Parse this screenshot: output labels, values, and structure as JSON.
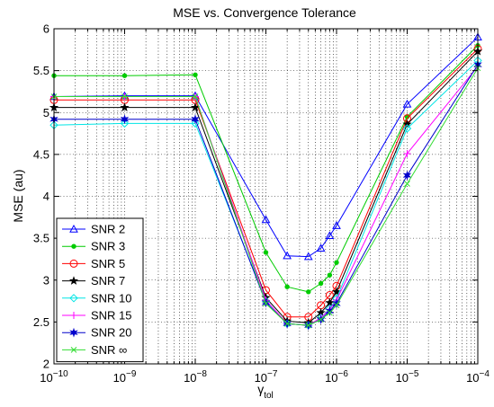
{
  "chart_data": {
    "type": "line",
    "title": "MSE vs. Convergence Tolerance",
    "xlabel": "γ",
    "xlabel_sub": "tol",
    "ylabel": "MSE (au)",
    "x_scale": "log",
    "xlim": [
      1e-10,
      0.0001
    ],
    "ylim": [
      2,
      6
    ],
    "grid": true,
    "legend_position": "bottom-left",
    "x_tick_labels": [
      {
        "value": 1e-10,
        "base": "10",
        "exp": "−10"
      },
      {
        "value": 1e-09,
        "base": "10",
        "exp": "−9"
      },
      {
        "value": 1e-08,
        "base": "10",
        "exp": "−8"
      },
      {
        "value": 1e-07,
        "base": "10",
        "exp": "−7"
      },
      {
        "value": 1e-06,
        "base": "10",
        "exp": "−6"
      },
      {
        "value": 1e-05,
        "base": "10",
        "exp": "−5"
      },
      {
        "value": 0.0001,
        "base": "10",
        "exp": "−4"
      }
    ],
    "y_ticks": [
      2,
      2.5,
      3,
      3.5,
      4,
      4.5,
      5,
      5.5,
      6
    ],
    "y_tick_labels": [
      "2",
      "2.5",
      "3",
      "3.5",
      "4",
      "4.5",
      "5",
      "5.5",
      "6"
    ],
    "x": [
      1e-10,
      1e-09,
      1e-08,
      1e-07,
      2e-07,
      4e-07,
      6e-07,
      8e-07,
      1e-06,
      1e-05,
      0.0001
    ],
    "series": [
      {
        "name": "SNR 2",
        "color": "#0000ff",
        "marker": "triangle",
        "values": [
          5.19,
          5.2,
          5.2,
          3.72,
          3.29,
          3.28,
          3.38,
          3.53,
          3.65,
          5.1,
          5.9
        ]
      },
      {
        "name": "SNR 3",
        "color": "#00cc00",
        "marker": "dot",
        "values": [
          5.44,
          5.44,
          5.45,
          3.33,
          2.92,
          2.86,
          2.96,
          3.06,
          3.21,
          4.95,
          5.8
        ]
      },
      {
        "name": "SNR 5",
        "color": "#ff0000",
        "marker": "circle",
        "values": [
          5.15,
          5.15,
          5.15,
          2.88,
          2.56,
          2.56,
          2.7,
          2.82,
          2.93,
          4.93,
          5.76
        ]
      },
      {
        "name": "SNR 7",
        "color": "#000000",
        "marker": "star",
        "values": [
          5.06,
          5.06,
          5.06,
          2.79,
          2.51,
          2.49,
          2.61,
          2.73,
          2.86,
          4.86,
          5.73
        ]
      },
      {
        "name": "SNR 10",
        "color": "#00e5e5",
        "marker": "diamond",
        "values": [
          4.85,
          4.87,
          4.87,
          2.75,
          2.48,
          2.46,
          2.55,
          2.66,
          2.78,
          4.81,
          5.62
        ]
      },
      {
        "name": "SNR 15",
        "color": "#ff00ff",
        "marker": "plus",
        "values": [
          5.19,
          5.19,
          5.19,
          2.76,
          2.48,
          2.46,
          2.55,
          2.65,
          2.76,
          4.51,
          5.55
        ]
      },
      {
        "name": "SNR 20",
        "color": "#0000cc",
        "marker": "hexstar",
        "values": [
          4.92,
          4.92,
          4.92,
          2.73,
          2.48,
          2.46,
          2.53,
          2.63,
          2.72,
          4.25,
          5.57
        ]
      },
      {
        "name": "SNR ∞",
        "color": "#33dd33",
        "marker": "x",
        "values": [
          5.19,
          5.19,
          5.19,
          2.72,
          2.48,
          2.46,
          2.53,
          2.61,
          2.7,
          4.15,
          5.53
        ]
      }
    ]
  }
}
